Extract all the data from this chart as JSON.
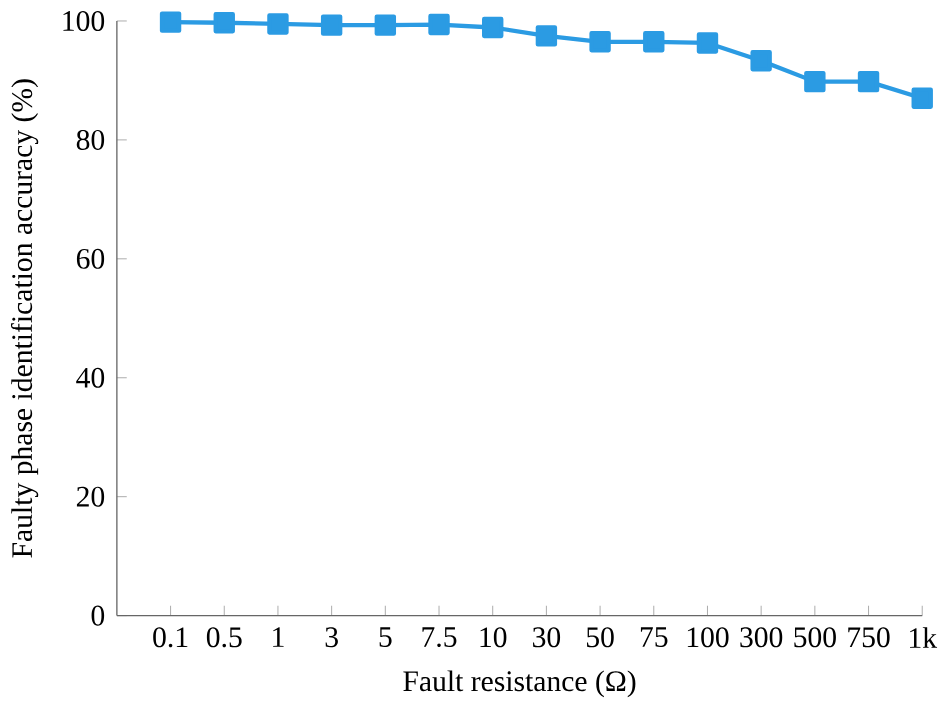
{
  "chart_data": {
    "type": "line",
    "xlabel": "Fault resistance (Ω)",
    "ylabel": "Faulty phase identification accuracy (%)",
    "categories": [
      "0.1",
      "0.5",
      "1",
      "3",
      "5",
      "7.5",
      "10",
      "30",
      "50",
      "75",
      "100",
      "300",
      "500",
      "750",
      "1k"
    ],
    "series": [
      {
        "color": "#2b9be3",
        "values": [
          99.8,
          99.7,
          99.5,
          99.3,
          99.3,
          99.4,
          98.9,
          97.5,
          96.5,
          96.5,
          96.3,
          93.3,
          89.8,
          89.8,
          87.0
        ]
      }
    ],
    "ylim": [
      0,
      100
    ],
    "yticks": [
      0,
      20,
      40,
      60,
      80,
      100
    ],
    "marker": "square",
    "line_style": "solid"
  }
}
